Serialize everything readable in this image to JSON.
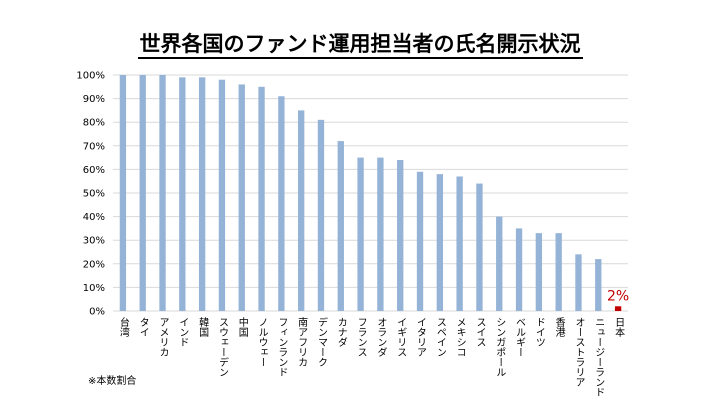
{
  "chart_data": {
    "type": "bar",
    "title": "世界各国のファンド運用担当者の氏名開示状況",
    "categories": [
      "台湾",
      "タイ",
      "アメリカ",
      "インド",
      "韓国",
      "スウェーデン",
      "中国",
      "ノルウェー",
      "フィンランド",
      "南アフリカ",
      "デンマーク",
      "カナダ",
      "フランス",
      "オランダ",
      "イギリス",
      "イタリア",
      "スペイン",
      "メキシコ",
      "スイス",
      "シンガポール",
      "ベルギー",
      "ドイツ",
      "香港",
      "オーストラリア",
      "ニュージーランド",
      "日本"
    ],
    "values": [
      100,
      100,
      100,
      99,
      99,
      98,
      96,
      95,
      91,
      85,
      81,
      72,
      65,
      65,
      64,
      59,
      58,
      57,
      54,
      40,
      35,
      33,
      33,
      24,
      22,
      2
    ],
    "ylim": [
      0,
      100
    ],
    "yticks": [
      "0%",
      "10%",
      "20%",
      "30%",
      "40%",
      "50%",
      "60%",
      "70%",
      "80%",
      "90%",
      "100%"
    ],
    "grid": true,
    "colors": {
      "bar": "#95B3D7",
      "highlight": "#C00000",
      "grid": "#D9D9D9"
    },
    "highlight_category": "日本",
    "annotations": [
      {
        "category": "日本",
        "text": "2%"
      }
    ]
  },
  "footnote": "※本数割合"
}
